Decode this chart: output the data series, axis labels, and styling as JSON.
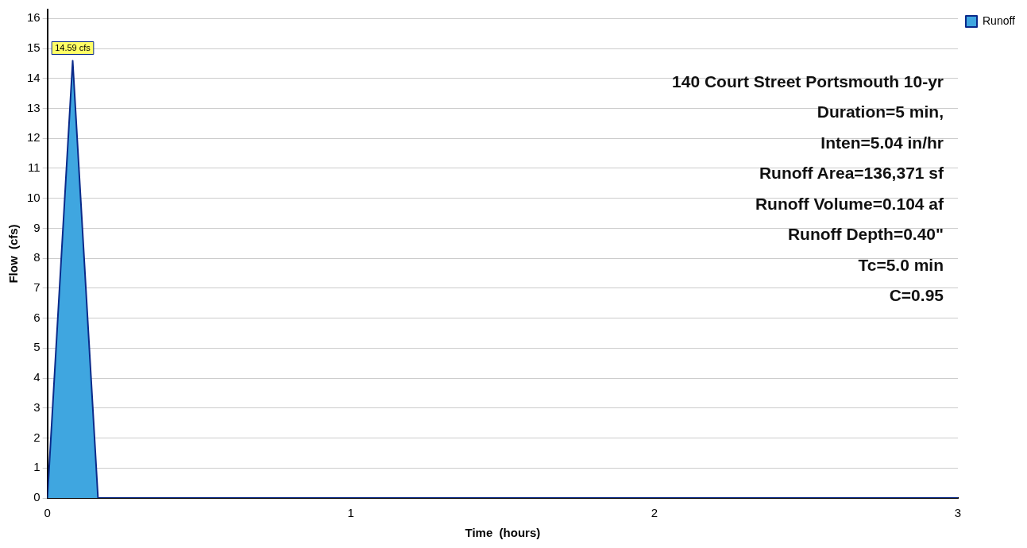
{
  "chart_data": {
    "type": "area",
    "xlabel": "Time  (hours)",
    "ylabel": "Flow  (cfs)",
    "x": [
      0,
      0.0833,
      0.1667,
      3
    ],
    "series": [
      {
        "name": "Runoff",
        "color": "#3fa6e0",
        "values": [
          0,
          14.59,
          0,
          0
        ],
        "value_labels": [
          null,
          "14.59 cfs",
          null,
          null
        ]
      }
    ],
    "xlim": [
      0,
      3
    ],
    "xticks": [
      0,
      1,
      2,
      3
    ],
    "ylim": [
      0,
      16.3
    ],
    "yticks": [
      0,
      1,
      2,
      3,
      4,
      5,
      6,
      7,
      8,
      9,
      10,
      11,
      12,
      13,
      14,
      15,
      16
    ],
    "grid": "y",
    "legend": "top right",
    "annotations": [
      "140 Court Street Portsmouth 10-yr",
      "Duration=5 min,",
      "Inten=5.04 in/hr",
      "Runoff Area=136,371 sf",
      "Runoff Volume=0.104 af",
      "Runoff Depth=0.40\"",
      "Tc=5.0 min",
      "C=0.95"
    ]
  }
}
